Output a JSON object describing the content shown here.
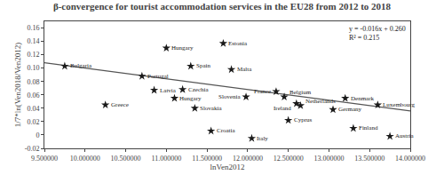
{
  "chart_data": {
    "type": "scatter",
    "title": "β-convergence for tourist accommodation services in the EU28 from 2012 to 2018",
    "xlabel": "lnVen2012",
    "ylabel": "1/7*ln(Ven2018/Ven2012)",
    "xlim": [
      9500000,
      14000000
    ],
    "ylim": [
      -0.02,
      0.17
    ],
    "xticks": [
      {
        "value": 9500000,
        "label": "9.500000"
      },
      {
        "value": 10000000,
        "label": "10.000000"
      },
      {
        "value": 10500000,
        "label": "10.500000"
      },
      {
        "value": 11000000,
        "label": "11.000000"
      },
      {
        "value": 11500000,
        "label": "11.500000"
      },
      {
        "value": 12000000,
        "label": "12.000000"
      },
      {
        "value": 12500000,
        "label": "12.500000"
      },
      {
        "value": 13000000,
        "label": "13.000000"
      },
      {
        "value": 13500000,
        "label": "13.500000"
      },
      {
        "value": 14000000,
        "label": "14.000000"
      }
    ],
    "yticks": [
      -0.02,
      0,
      0.02,
      0.04,
      0.06,
      0.08,
      {
        "value": 0.1,
        "label": "0.10"
      },
      0.12,
      0.14,
      0.16
    ],
    "grid": false,
    "series": [
      {
        "type": "line",
        "color": "#555555",
        "x": [
          9500000,
          14000000
        ],
        "values": [
          0.108,
          0.036
        ]
      },
      {
        "type": "scatter",
        "marker": "star",
        "color": "#1a1a1a",
        "x": [
          9750000,
          10250000,
          10700000,
          10850000,
          11000000,
          11100000,
          11200000,
          11350000,
          11300000,
          11550000,
          11700000,
          11800000,
          11980000,
          12050000,
          12350000,
          12450000,
          12500000,
          12600000,
          12650000,
          13050000,
          13200000,
          13300000,
          13600000,
          13750000
        ],
        "values": [
          0.103,
          0.045,
          0.088,
          0.067,
          0.13,
          0.055,
          0.068,
          0.04,
          0.103,
          0.006,
          0.137,
          0.098,
          0.057,
          -0.005,
          0.065,
          0.057,
          0.022,
          0.047,
          0.044,
          0.038,
          0.055,
          0.01,
          0.045,
          -0.002
        ],
        "labels": [
          "Bulgaria",
          "Greece",
          "Portugal",
          "Latvia",
          "Hungary",
          "Hungary",
          "Czechia",
          "Slovakia",
          "Spain",
          "Croatia",
          "Estonia",
          "Malta",
          "Slovenia",
          "Italy",
          "France",
          "Belgium",
          "Cyprus",
          "Ireland",
          "Netherlands",
          "Germany",
          "Denmark",
          "Finland",
          "Luxembourg",
          "Austria"
        ]
      }
    ],
    "annotations": [
      "y = -0.016x + 0.260",
      "R² = 0.215"
    ]
  }
}
